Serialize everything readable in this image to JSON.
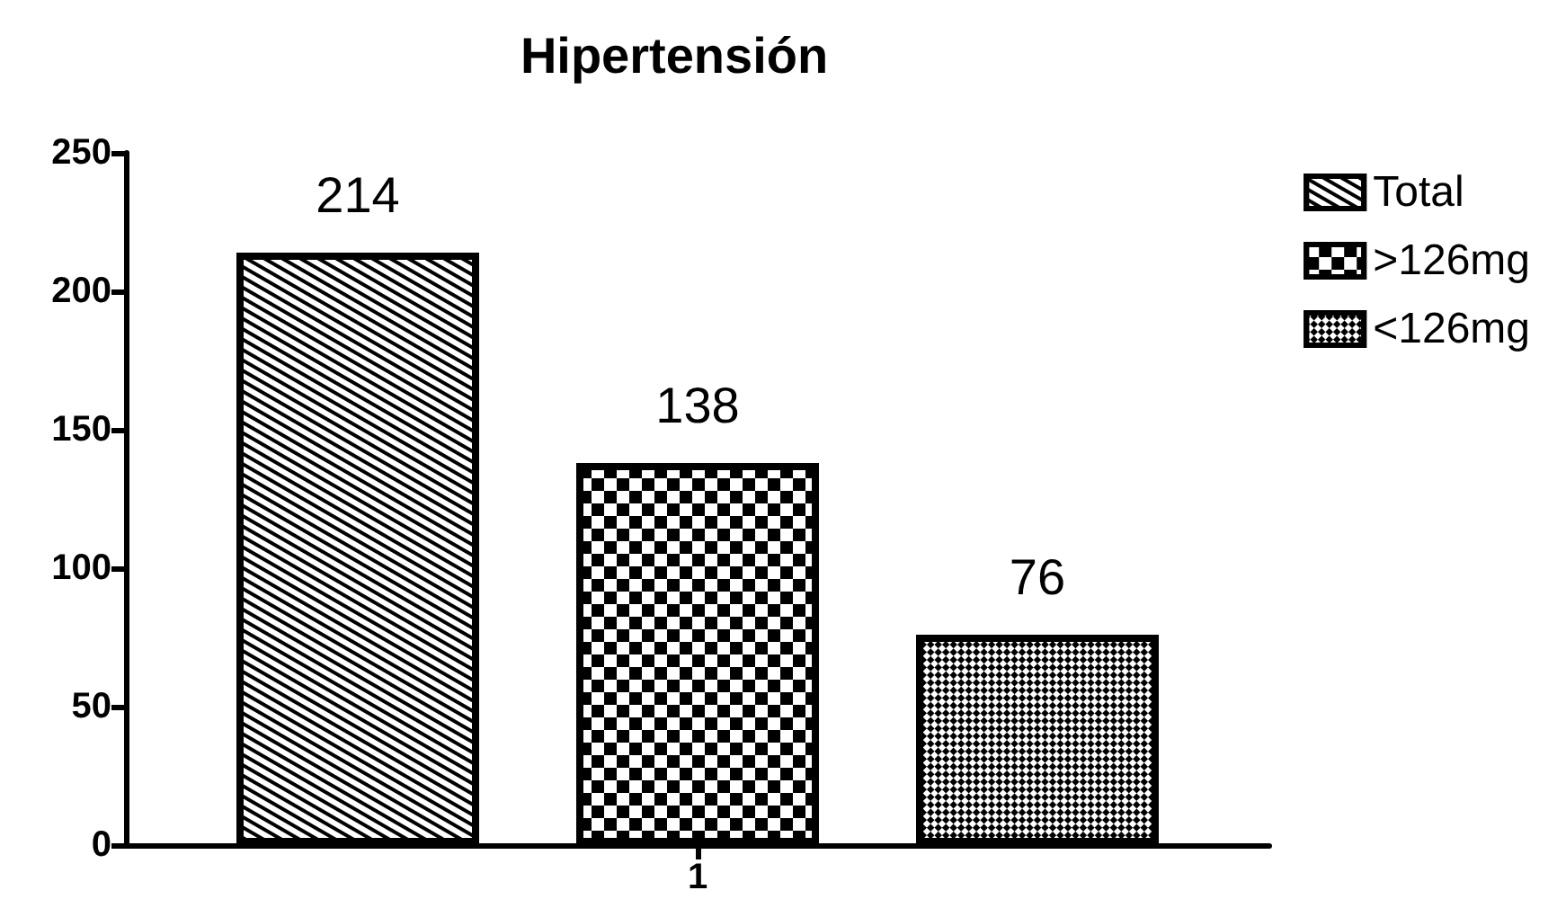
{
  "chart_data": {
    "type": "bar",
    "title": "Hipertensión",
    "categories": [
      "1"
    ],
    "series": [
      {
        "name": "Total",
        "color": "#ffffff",
        "values": [
          214
        ]
      },
      {
        "name": ">126mg",
        "color": "#ffffff",
        "values": [
          138
        ]
      },
      {
        "name": "<126mg",
        "color": "#ffffff",
        "values": [
          76
        ]
      }
    ],
    "ylim": [
      0,
      250
    ],
    "yticks": [
      0,
      50,
      100,
      150,
      200,
      250
    ],
    "data_labels": true,
    "legend": "top right",
    "grid": false
  }
}
